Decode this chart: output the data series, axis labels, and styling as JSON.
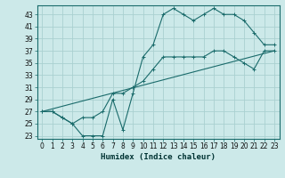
{
  "xlabel": "Humidex (Indice chaleur)",
  "ylabel": "",
  "bg_color": "#cce9e9",
  "grid_color": "#aad0d0",
  "line_color": "#1a6b6b",
  "xlim": [
    -0.5,
    23.5
  ],
  "ylim": [
    22.5,
    44.5
  ],
  "yticks": [
    23,
    25,
    27,
    29,
    31,
    33,
    35,
    37,
    39,
    41,
    43
  ],
  "xticks": [
    0,
    1,
    2,
    3,
    4,
    5,
    6,
    7,
    8,
    9,
    10,
    11,
    12,
    13,
    14,
    15,
    16,
    17,
    18,
    19,
    20,
    21,
    22,
    23
  ],
  "series1_x": [
    0,
    1,
    2,
    3,
    4,
    5,
    6,
    7,
    8,
    9,
    10,
    11,
    12,
    13,
    14,
    15,
    16,
    17,
    18,
    19,
    20,
    21,
    22,
    23
  ],
  "series1_y": [
    27,
    27,
    26,
    25,
    23,
    23,
    23,
    29,
    24,
    30,
    36,
    38,
    43,
    44,
    43,
    42,
    43,
    44,
    43,
    43,
    42,
    40,
    38,
    38
  ],
  "series2_x": [
    0,
    1,
    2,
    3,
    4,
    5,
    6,
    7,
    8,
    9,
    10,
    11,
    12,
    13,
    14,
    15,
    16,
    17,
    18,
    19,
    20,
    21,
    22,
    23
  ],
  "series2_y": [
    27,
    27,
    26,
    25,
    26,
    26,
    27,
    30,
    30,
    31,
    32,
    34,
    36,
    36,
    36,
    36,
    36,
    37,
    37,
    36,
    35,
    34,
    37,
    37
  ],
  "series3_x": [
    0,
    23
  ],
  "series3_y": [
    27,
    37
  ]
}
